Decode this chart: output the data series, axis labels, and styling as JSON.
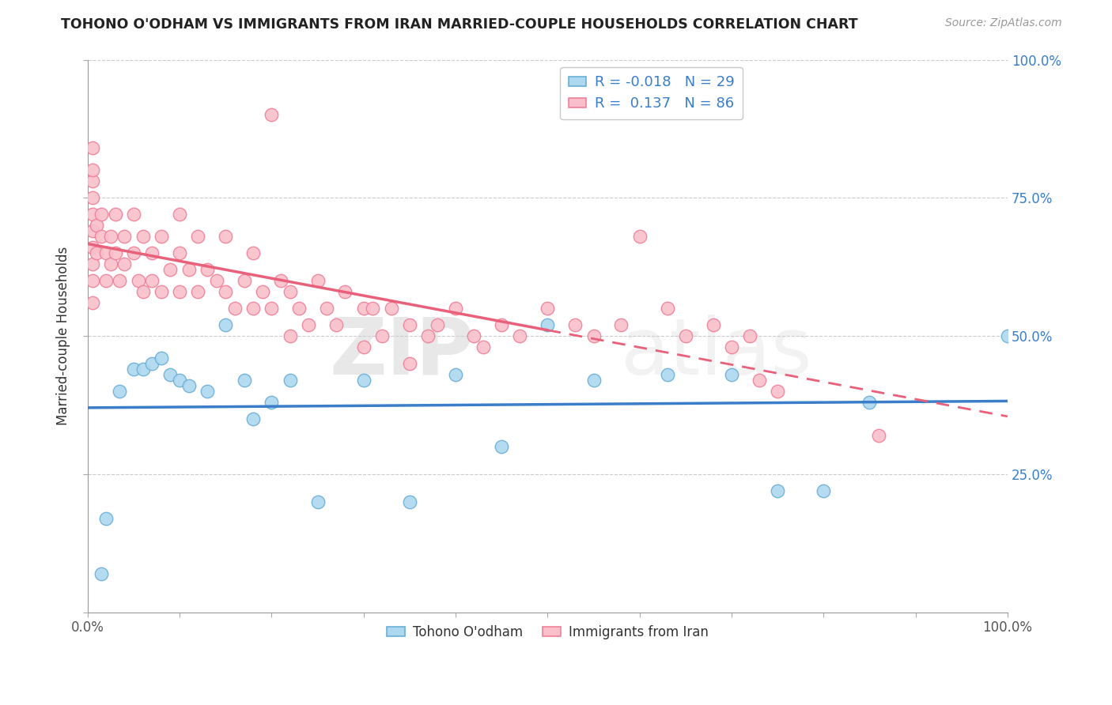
{
  "title": "TOHONO O'ODHAM VS IMMIGRANTS FROM IRAN MARRIED-COUPLE HOUSEHOLDS CORRELATION CHART",
  "source": "Source: ZipAtlas.com",
  "ylabel": "Married-couple Households",
  "watermark_zip": "ZIP",
  "watermark_atlas": "atlas",
  "legend_blue_label": "Tohono O'odham",
  "legend_pink_label": "Immigrants from Iran",
  "R_blue": -0.018,
  "N_blue": 29,
  "R_pink": 0.137,
  "N_pink": 86,
  "blue_fill": "#ADD8F0",
  "pink_fill": "#F9C0CB",
  "blue_edge": "#6BAED6",
  "pink_edge": "#F08098",
  "blue_line": "#3A7DC9",
  "pink_line": "#E8607A",
  "xlim": [
    0,
    100
  ],
  "ylim": [
    0,
    100
  ],
  "background_color": "#FFFFFF",
  "grid_color": "#CCCCCC",
  "blue_x": [
    1.5,
    2.0,
    3.5,
    5.0,
    6.0,
    7.0,
    8.0,
    9.0,
    10.0,
    11.0,
    13.0,
    15.0,
    17.0,
    18.0,
    20.0,
    22.0,
    25.0,
    30.0,
    35.0,
    40.0,
    45.0,
    50.0,
    55.0,
    63.0,
    70.0,
    75.0,
    80.0,
    85.0,
    100.0
  ],
  "blue_y": [
    7.0,
    17.0,
    40.0,
    44.0,
    44.0,
    45.0,
    46.0,
    43.0,
    42.0,
    41.0,
    40.0,
    52.0,
    42.0,
    35.0,
    38.0,
    42.0,
    20.0,
    42.0,
    20.0,
    43.0,
    30.0,
    52.0,
    42.0,
    43.0,
    43.0,
    22.0,
    22.0,
    38.0,
    50.0
  ],
  "pink_x": [
    0.5,
    0.5,
    0.5,
    0.5,
    0.5,
    0.5,
    0.5,
    0.5,
    0.5,
    0.5,
    1.0,
    1.0,
    1.5,
    1.5,
    2.0,
    2.0,
    2.5,
    2.5,
    3.0,
    3.0,
    3.5,
    4.0,
    4.0,
    5.0,
    5.0,
    5.5,
    6.0,
    6.0,
    7.0,
    7.0,
    8.0,
    8.0,
    9.0,
    10.0,
    10.0,
    10.0,
    11.0,
    12.0,
    12.0,
    13.0,
    14.0,
    15.0,
    15.0,
    16.0,
    17.0,
    18.0,
    18.0,
    19.0,
    20.0,
    20.0,
    21.0,
    22.0,
    22.0,
    23.0,
    24.0,
    25.0,
    26.0,
    27.0,
    28.0,
    30.0,
    30.0,
    31.0,
    32.0,
    33.0,
    35.0,
    35.0,
    37.0,
    38.0,
    40.0,
    42.0,
    43.0,
    45.0,
    47.0,
    50.0,
    53.0,
    55.0,
    58.0,
    60.0,
    63.0,
    65.0,
    68.0,
    70.0,
    72.0,
    73.0,
    75.0,
    86.0
  ],
  "pink_y": [
    56.0,
    60.0,
    63.0,
    66.0,
    69.0,
    72.0,
    75.0,
    78.0,
    80.0,
    84.0,
    70.0,
    65.0,
    72.0,
    68.0,
    65.0,
    60.0,
    68.0,
    63.0,
    72.0,
    65.0,
    60.0,
    68.0,
    63.0,
    72.0,
    65.0,
    60.0,
    68.0,
    58.0,
    65.0,
    60.0,
    68.0,
    58.0,
    62.0,
    72.0,
    65.0,
    58.0,
    62.0,
    68.0,
    58.0,
    62.0,
    60.0,
    68.0,
    58.0,
    55.0,
    60.0,
    65.0,
    55.0,
    58.0,
    90.0,
    55.0,
    60.0,
    58.0,
    50.0,
    55.0,
    52.0,
    60.0,
    55.0,
    52.0,
    58.0,
    55.0,
    48.0,
    55.0,
    50.0,
    55.0,
    52.0,
    45.0,
    50.0,
    52.0,
    55.0,
    50.0,
    48.0,
    52.0,
    50.0,
    55.0,
    52.0,
    50.0,
    52.0,
    68.0,
    55.0,
    50.0,
    52.0,
    48.0,
    50.0,
    42.0,
    40.0,
    32.0
  ]
}
